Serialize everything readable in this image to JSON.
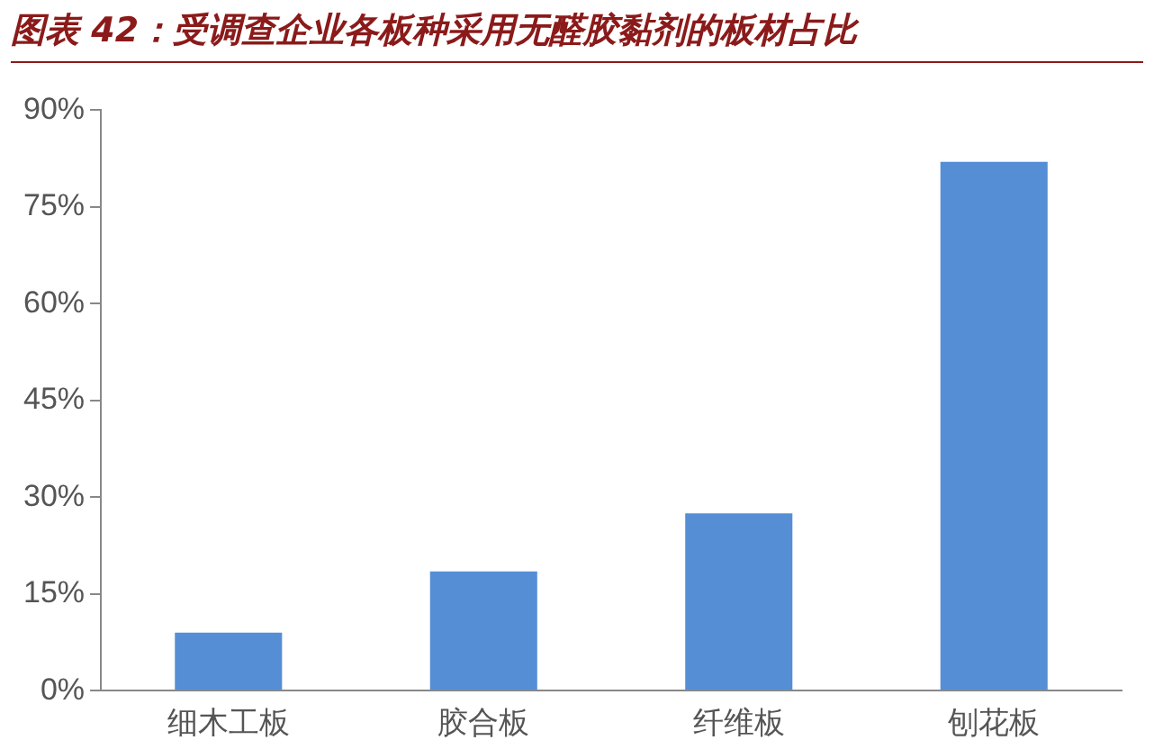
{
  "chart_data": {
    "type": "bar",
    "title": "图表 42：受调查企业各板种采用无醛胶黏剂的板材占比",
    "categories": [
      "细木工板",
      "胶合板",
      "纤维板",
      "刨花板"
    ],
    "values": [
      9,
      18.5,
      27.5,
      82
    ],
    "color": "#558ed5",
    "ylim": [
      0,
      90
    ],
    "yticks": [
      {
        "value": 0,
        "label": "0%"
      },
      {
        "value": 15,
        "label": "15%"
      },
      {
        "value": 30,
        "label": "30%"
      },
      {
        "value": 45,
        "label": "45%"
      },
      {
        "value": 60,
        "label": "60%"
      },
      {
        "value": 75,
        "label": "75%"
      },
      {
        "value": 90,
        "label": "90%"
      }
    ],
    "grid": false,
    "legend": false
  }
}
